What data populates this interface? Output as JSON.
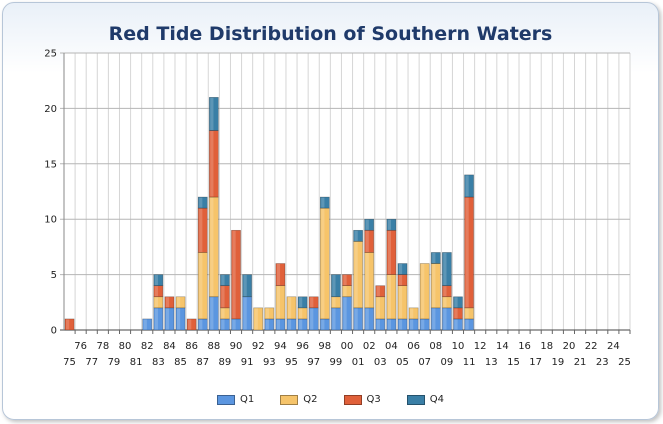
{
  "chart_data": {
    "type": "bar",
    "stacked": true,
    "title": "Red Tide Distribution of Southern Waters",
    "xlabel": "",
    "ylabel": "",
    "ylim": [
      0,
      25
    ],
    "yticks": [
      0,
      5,
      10,
      15,
      20,
      25
    ],
    "grid": true,
    "legend_position": "bottom",
    "categories": [
      "75",
      "76",
      "77",
      "78",
      "79",
      "80",
      "81",
      "82",
      "83",
      "84",
      "85",
      "86",
      "87",
      "88",
      "89",
      "90",
      "91",
      "92",
      "93",
      "94",
      "95",
      "96",
      "97",
      "98",
      "99",
      "00",
      "01",
      "02",
      "03",
      "04",
      "05",
      "06",
      "07",
      "08",
      "09",
      "10",
      "11",
      "12",
      "13",
      "14",
      "15",
      "16",
      "17",
      "18",
      "19",
      "20",
      "21",
      "22",
      "23",
      "24",
      "25"
    ],
    "series": [
      {
        "name": "Q1",
        "color": "#5b96e0",
        "values": [
          0,
          0,
          0,
          0,
          0,
          0,
          0,
          1,
          2,
          2,
          2,
          0,
          1,
          3,
          1,
          1,
          3,
          0,
          1,
          1,
          1,
          1,
          2,
          1,
          2,
          3,
          2,
          2,
          1,
          1,
          1,
          1,
          1,
          2,
          2,
          1,
          1,
          0,
          0,
          0,
          0,
          0,
          0,
          0,
          0,
          0,
          0,
          0,
          0,
          0,
          0
        ]
      },
      {
        "name": "Q2",
        "color": "#f6c46a",
        "values": [
          0,
          0,
          0,
          0,
          0,
          0,
          0,
          0,
          1,
          0,
          1,
          0,
          6,
          9,
          1,
          0,
          0,
          2,
          1,
          3,
          2,
          1,
          0,
          10,
          1,
          1,
          6,
          5,
          2,
          4,
          3,
          1,
          5,
          4,
          1,
          0,
          1,
          0,
          0,
          0,
          0,
          0,
          0,
          0,
          0,
          0,
          0,
          0,
          0,
          0,
          0
        ]
      },
      {
        "name": "Q3",
        "color": "#e0603a",
        "values": [
          1,
          0,
          0,
          0,
          0,
          0,
          0,
          0,
          1,
          1,
          0,
          1,
          4,
          6,
          2,
          8,
          0,
          0,
          0,
          2,
          0,
          0,
          1,
          0,
          0,
          1,
          0,
          2,
          1,
          4,
          1,
          0,
          0,
          0,
          1,
          1,
          10,
          0,
          0,
          0,
          0,
          0,
          0,
          0,
          0,
          0,
          0,
          0,
          0,
          0,
          0
        ]
      },
      {
        "name": "Q4",
        "color": "#3a7fa6",
        "values": [
          0,
          0,
          0,
          0,
          0,
          0,
          0,
          0,
          1,
          0,
          0,
          0,
          1,
          3,
          1,
          0,
          2,
          0,
          0,
          0,
          0,
          1,
          0,
          1,
          2,
          0,
          1,
          1,
          0,
          1,
          1,
          0,
          0,
          1,
          3,
          1,
          2,
          0,
          0,
          0,
          0,
          0,
          0,
          0,
          0,
          0,
          0,
          0,
          0,
          0,
          0
        ]
      }
    ]
  }
}
